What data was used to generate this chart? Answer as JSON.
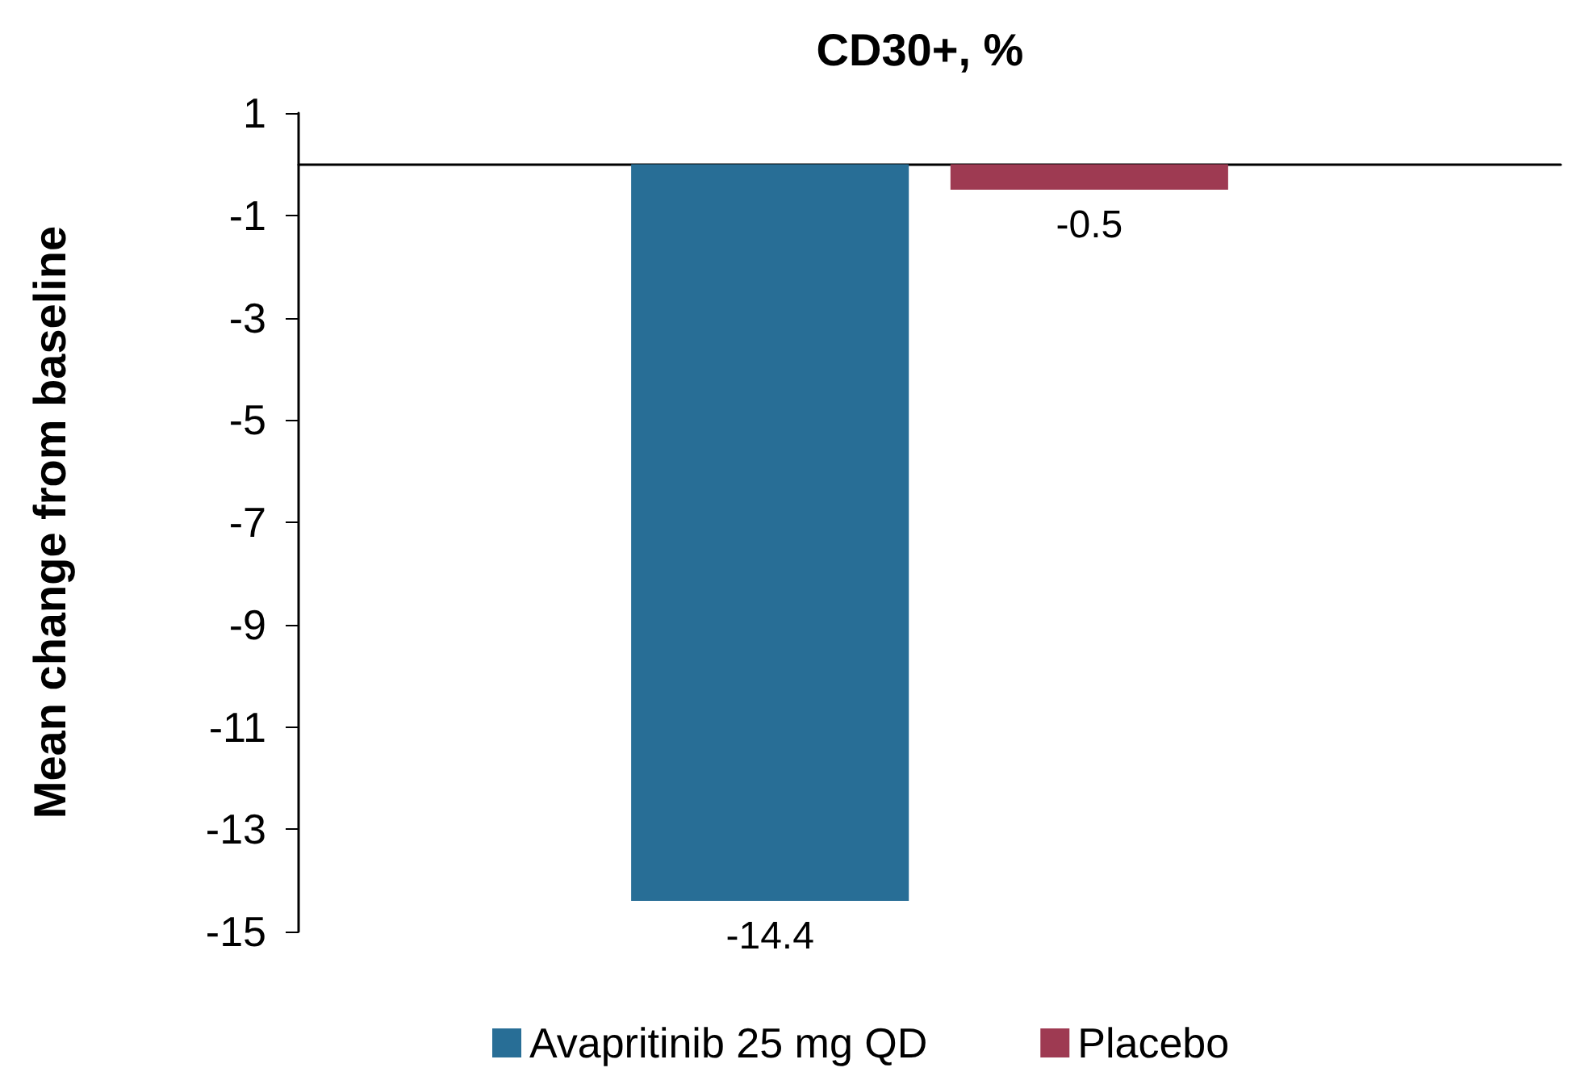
{
  "chart_data": {
    "type": "bar",
    "title": "CD30+, %",
    "ylabel": "Mean change from baseline",
    "categories": [
      null
    ],
    "series": [
      {
        "name": "Avapritinib 25 mg QD",
        "color": "#286e96",
        "values": [
          -14.4
        ]
      },
      {
        "name": "Placebo",
        "color": "#9e3a52",
        "values": [
          -0.5
        ]
      }
    ],
    "ylim": [
      -15,
      1
    ],
    "yticks": [
      1,
      -1,
      -3,
      -5,
      -7,
      -9,
      -11,
      -13,
      -15
    ],
    "grid": false,
    "legend": "bottom",
    "data_labels": true
  }
}
